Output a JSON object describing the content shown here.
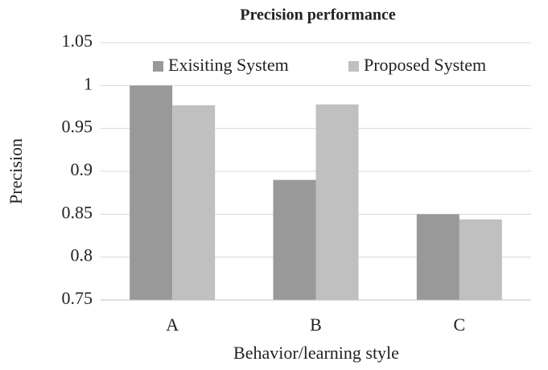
{
  "chart_data": {
    "type": "bar",
    "title": "Precision performance",
    "y_label": "Precision",
    "x_label": "Behavior/learning style",
    "categories": [
      "A",
      "B",
      "C"
    ],
    "series": [
      {
        "name": "Exisiting System",
        "color": "#999999",
        "values": [
          1,
          0.89,
          0.85
        ]
      },
      {
        "name": "Proposed System",
        "color": "#c0c0c0",
        "values": [
          0.977,
          0.978,
          0.844
        ]
      }
    ],
    "ylim": [
      0.75,
      1.05
    ],
    "yticks": [
      0.75,
      0.8,
      0.85,
      0.9,
      0.95,
      1,
      1.05
    ],
    "grid": true,
    "legend": "top"
  }
}
